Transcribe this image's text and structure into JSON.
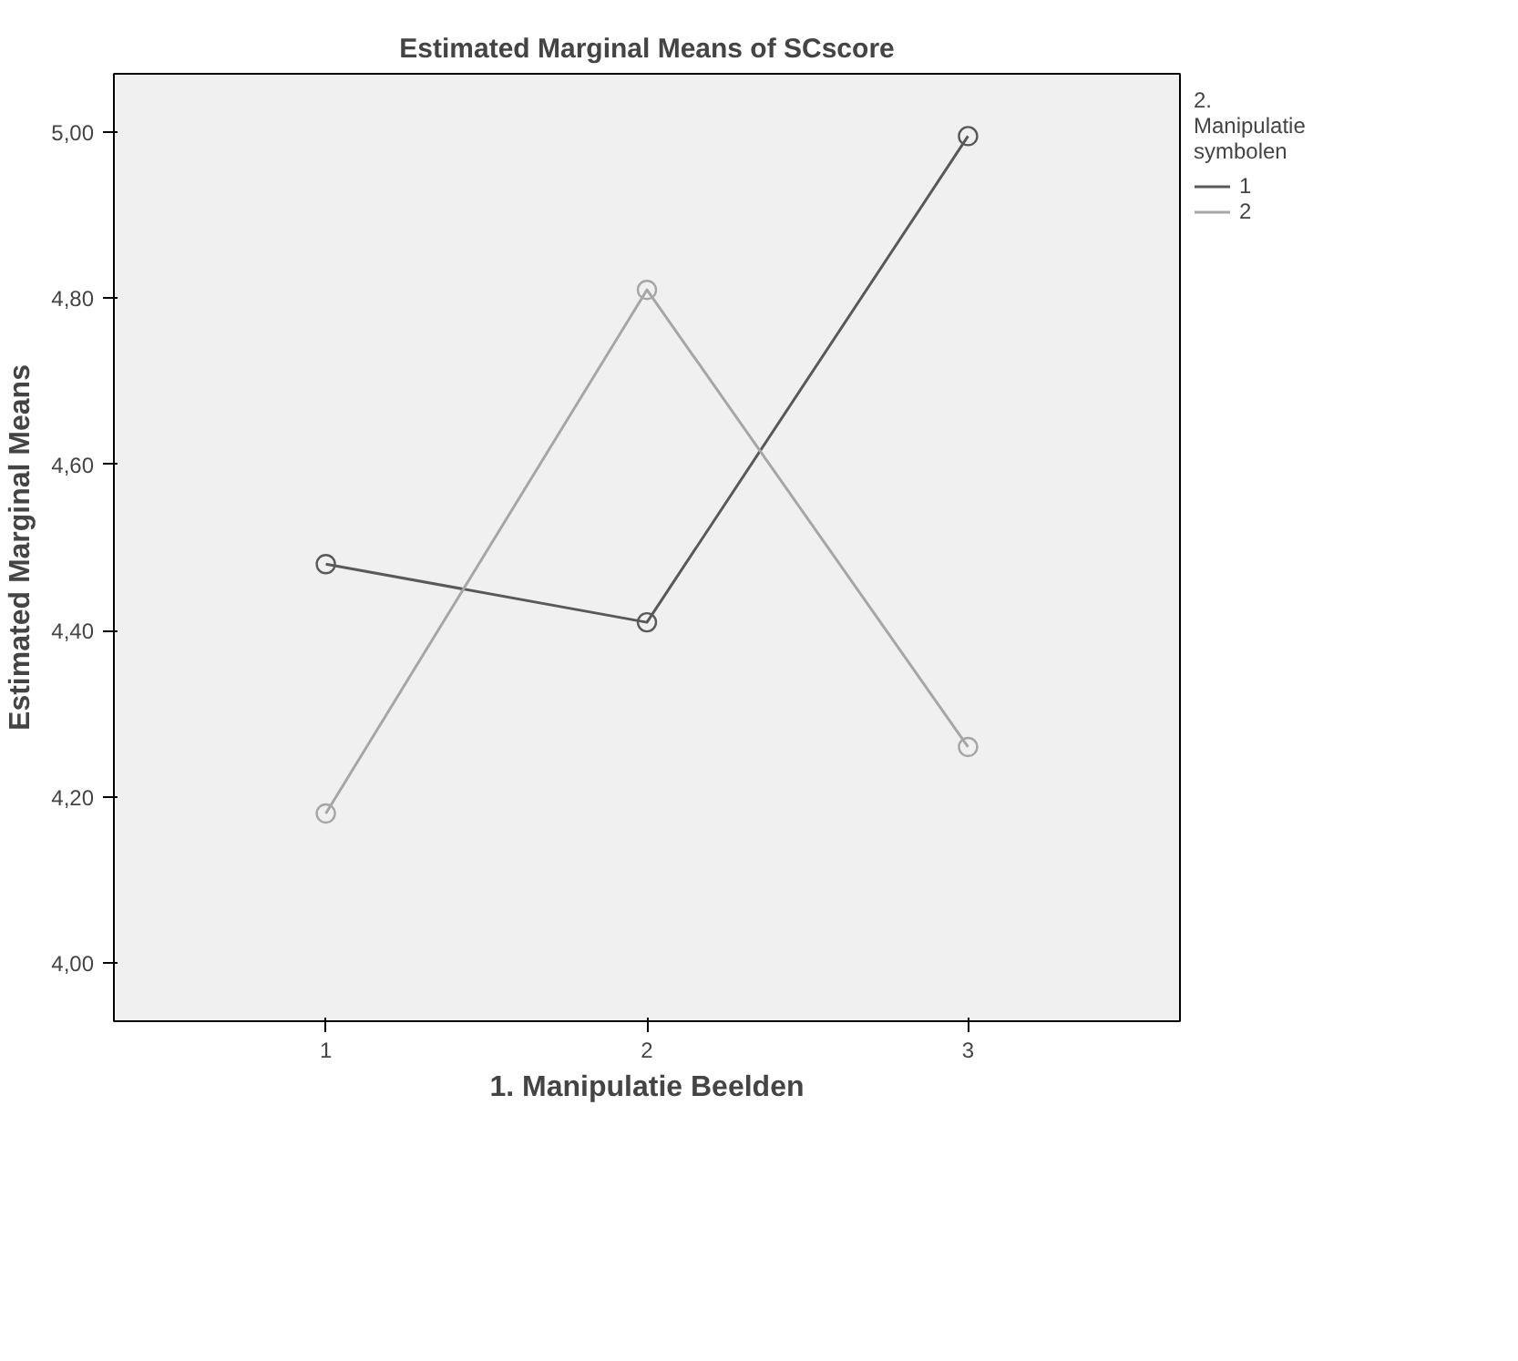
{
  "chart_data": {
    "type": "line",
    "title": "Estimated Marginal Means of SCscore",
    "xlabel": "1. Manipulatie Beelden",
    "ylabel": "Estimated Marginal Means",
    "legend_title": "2. Manipulatie symbolen",
    "categories": [
      "1",
      "2",
      "3"
    ],
    "series": [
      {
        "name": "1",
        "color": "#595959",
        "values": [
          4.48,
          4.41,
          4.995
        ]
      },
      {
        "name": "2",
        "color": "#a6a6a6",
        "values": [
          4.18,
          4.81,
          4.26
        ]
      }
    ],
    "ylim": [
      3.93,
      5.07
    ],
    "yticks": [
      {
        "value": 4.0,
        "label": "4,00"
      },
      {
        "value": 4.2,
        "label": "4,20"
      },
      {
        "value": 4.4,
        "label": "4,40"
      },
      {
        "value": 4.6,
        "label": "4,60"
      },
      {
        "value": 4.8,
        "label": "4,80"
      },
      {
        "value": 5.0,
        "label": "5,00"
      }
    ],
    "grid": false,
    "legend": "top right",
    "marker": "circle",
    "line_style": "solid"
  }
}
